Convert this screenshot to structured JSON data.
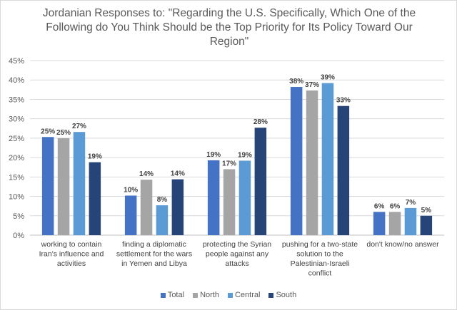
{
  "chart_data": {
    "type": "bar",
    "title": "Jordanian Responses to: \"Regarding the U.S. Specifically, Which One of the Following do You Think Should be the Top Priority for Its Policy Toward Our Region\"",
    "categories": [
      "working to contain Iran's influence and activities",
      "finding a diplomatic settlement for the wars in Yemen and Libya",
      "protecting the Syrian people against any attacks",
      "pushing for a two-state solution to the Palestinian-Israeli conflict",
      "don't know/no answer"
    ],
    "category_lines": [
      [
        "working to contain",
        "Iran's influence and",
        "activities"
      ],
      [
        "finding a diplomatic",
        "settlement for the wars",
        "in Yemen and Libya"
      ],
      [
        "protecting the Syrian",
        "people against any",
        "attacks"
      ],
      [
        "pushing for a two-state",
        "solution to the",
        "Palestinian-Israeli",
        "conflict"
      ],
      [
        "don't know/no answer"
      ]
    ],
    "series": [
      {
        "name": "Total",
        "color": "#4472c4",
        "values": [
          25.3,
          10.2,
          19.3,
          38.2,
          6.0
        ],
        "labels": [
          "25%",
          "10%",
          "19%",
          "38%",
          "6%"
        ]
      },
      {
        "name": "North",
        "color": "#a5a5a5",
        "values": [
          25.0,
          14.3,
          17.0,
          37.3,
          6.0
        ],
        "labels": [
          "25%",
          "14%",
          "17%",
          "37%",
          "6%"
        ]
      },
      {
        "name": "Central",
        "color": "#5b9bd5",
        "values": [
          26.6,
          7.7,
          19.2,
          39.2,
          7.0
        ],
        "labels": [
          "27%",
          "8%",
          "19%",
          "39%",
          "7%"
        ]
      },
      {
        "name": "South",
        "color": "#264478",
        "values": [
          18.8,
          14.4,
          27.7,
          33.3,
          5.0
        ],
        "labels": [
          "19%",
          "14%",
          "28%",
          "33%",
          "5%"
        ]
      }
    ],
    "y_ticks": [
      "0%",
      "5%",
      "10%",
      "15%",
      "20%",
      "25%",
      "30%",
      "35%",
      "40%",
      "45%"
    ],
    "ylim": [
      0,
      45
    ],
    "grid": true,
    "legend_position": "bottom"
  }
}
